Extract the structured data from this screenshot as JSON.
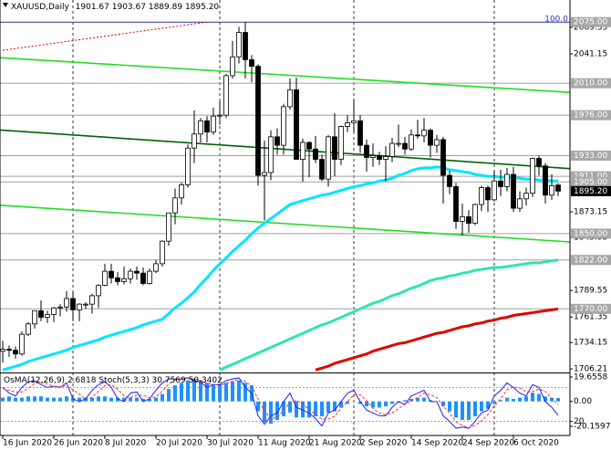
{
  "chart_data": {
    "type": "candlestick",
    "title": "XAUUSD,Daily",
    "header_values": [
      "1901.67",
      "1903.67",
      "1889.89",
      "1895.20"
    ],
    "categories": [
      "16 Jun 2020",
      null,
      null,
      null,
      null,
      null,
      null,
      null,
      "26 Jun 2020",
      null,
      null,
      null,
      null,
      null,
      null,
      null,
      "8 Jul 2020",
      null,
      null,
      null,
      null,
      null,
      null,
      null,
      "20 Jul 2020",
      null,
      null,
      null,
      null,
      null,
      null,
      null,
      "30 Jul 2020",
      null,
      null,
      null,
      null,
      null,
      null,
      null,
      "11 Aug 2020",
      null,
      null,
      null,
      null,
      null,
      null,
      null,
      "21 Aug 2020",
      null,
      null,
      null,
      null,
      null,
      null,
      null,
      "2 Sep 2020",
      null,
      null,
      null,
      null,
      null,
      null,
      null,
      "14 Sep 2020",
      null,
      null,
      null,
      null,
      null,
      null,
      null,
      "24 Sep 2020",
      null,
      null,
      null,
      null,
      null,
      null,
      null,
      "6 Oct 2020",
      null,
      null,
      null,
      null,
      null,
      null,
      null
    ],
    "open": [
      1725,
      1727,
      1726,
      1722,
      1743,
      1754,
      1768,
      1761,
      1764,
      1771,
      1772,
      1781,
      1769,
      1775,
      1775,
      1784,
      1795,
      1810,
      1803,
      1799,
      1802,
      1810,
      1808,
      1797,
      1810,
      1818,
      1842,
      1872,
      1888,
      1902,
      1941,
      1956,
      1970,
      1958,
      1975,
      1976,
      2018,
      2038,
      2064,
      2035,
      2028,
      1912,
      1915,
      1953,
      1944,
      1985,
      2003,
      1929,
      1947,
      1940,
      1929,
      1908,
      1953,
      1929,
      1964,
      1968,
      1970,
      1944,
      1931,
      1933,
      1929,
      1932,
      1946,
      1946,
      1940,
      1955,
      1954,
      1960,
      1944,
      1950,
      1912,
      1900,
      1863,
      1868,
      1861,
      1881,
      1899,
      1886,
      1906,
      1900,
      1913,
      1877,
      1887,
      1893,
      1930,
      1922,
      1891,
      1901.67
    ],
    "high": [
      1736,
      1731,
      1730,
      1746,
      1756,
      1768,
      1779,
      1768,
      1772,
      1775,
      1789,
      1788,
      1776,
      1777,
      1786,
      1796,
      1818,
      1818,
      1809,
      1815,
      1813,
      1815,
      1814,
      1813,
      1822,
      1843,
      1872,
      1898,
      1904,
      1945,
      1981,
      1973,
      1975,
      1984,
      1991,
      2020,
      2055,
      2070,
      2075,
      2040,
      2030,
      1949,
      1960,
      1962,
      1988,
      2015,
      2016,
      1951,
      1948,
      1954,
      1934,
      1955,
      1978,
      1965,
      1976,
      1992,
      1976,
      1950,
      1946,
      1937,
      1943,
      1952,
      1966,
      1953,
      1961,
      1971,
      1973,
      1962,
      1955,
      1953,
      1917,
      1904,
      1882,
      1875,
      1882,
      1901,
      1901,
      1917,
      1918,
      1920,
      1921,
      1895,
      1899,
      1931,
      1933,
      1925,
      1913,
      1903.67
    ],
    "low": [
      1713,
      1719,
      1717,
      1720,
      1741,
      1749,
      1757,
      1755,
      1756,
      1762,
      1767,
      1757,
      1757,
      1770,
      1765,
      1771,
      1794,
      1797,
      1795,
      1796,
      1797,
      1801,
      1795,
      1796,
      1808,
      1815,
      1837,
      1860,
      1881,
      1899,
      1925,
      1947,
      1947,
      1955,
      1966,
      1973,
      2015,
      2031,
      2015,
      2011,
      1901,
      1864,
      1907,
      1934,
      1934,
      1982,
      1930,
      1905,
      1910,
      1925,
      1906,
      1900,
      1911,
      1923,
      1958,
      1958,
      1936,
      1916,
      1921,
      1923,
      1906,
      1926,
      1942,
      1934,
      1938,
      1951,
      1947,
      1931,
      1936,
      1882,
      1892,
      1855,
      1848,
      1851,
      1859,
      1874,
      1873,
      1884,
      1890,
      1895,
      1873,
      1873,
      1880,
      1889,
      1912,
      1882,
      1886,
      1889.89
    ],
    "close": [
      1727,
      1726,
      1722,
      1743,
      1754,
      1768,
      1761,
      1764,
      1771,
      1772,
      1781,
      1769,
      1775,
      1775,
      1784,
      1795,
      1810,
      1803,
      1799,
      1802,
      1810,
      1808,
      1797,
      1810,
      1818,
      1842,
      1872,
      1888,
      1902,
      1941,
      1956,
      1970,
      1958,
      1975,
      1976,
      2018,
      2038,
      2064,
      2035,
      2028,
      1912,
      1915,
      1953,
      1944,
      1985,
      2003,
      1929,
      1947,
      1940,
      1929,
      1908,
      1953,
      1929,
      1964,
      1968,
      1970,
      1944,
      1931,
      1933,
      1929,
      1932,
      1946,
      1946,
      1940,
      1955,
      1954,
      1960,
      1944,
      1950,
      1912,
      1900,
      1863,
      1868,
      1861,
      1881,
      1899,
      1886,
      1906,
      1900,
      1913,
      1877,
      1887,
      1893,
      1930,
      1922,
      1891,
      1901,
      1895.2
    ],
    "bull_color": "#ffffff",
    "bear_color": "#000000",
    "ylim": [
      1703.3,
      2098.5
    ],
    "yticks": [
      2069.35,
      2041.15,
      1873.15,
      1845.95,
      1789.55,
      1761.35,
      1734.15,
      1706.21
    ],
    "series": [
      {
        "color": "#00e5ff",
        "values": [
          1705,
          1707,
          1709,
          1711,
          1714,
          1716,
          1718,
          1720,
          1722,
          1724,
          1726,
          1729,
          1731,
          1733,
          1735,
          1737,
          1740,
          1742,
          1744,
          1746,
          1748,
          1750,
          1753,
          1755,
          1757,
          1759,
          1765,
          1771,
          1776,
          1782,
          1788,
          1796,
          1803,
          1811,
          1818,
          1824,
          1831,
          1837,
          1843,
          1850,
          1856,
          1861,
          1866,
          1871,
          1876,
          1881,
          1883,
          1885,
          1887,
          1889,
          1891,
          1892,
          1894,
          1896,
          1898,
          1900,
          1901,
          1903,
          1904,
          1906,
          1907,
          1909,
          1912,
          1914,
          1917,
          1919,
          1920,
          1920,
          1921,
          1920,
          1918,
          1917,
          1916,
          1915,
          1913,
          1912,
          1911,
          1911,
          1910,
          1910,
          1909,
          1909,
          1908,
          1908,
          1907,
          1907,
          1906,
          1906
        ]
      },
      {
        "color": "#2ee6b0",
        "values": [
          null,
          null,
          null,
          null,
          null,
          null,
          null,
          null,
          null,
          null,
          null,
          null,
          null,
          null,
          null,
          null,
          null,
          null,
          null,
          null,
          null,
          null,
          null,
          null,
          null,
          null,
          null,
          null,
          null,
          null,
          null,
          null,
          null,
          null,
          1705,
          1708,
          1711,
          1714,
          1717,
          1720,
          1723,
          1726,
          1729,
          1732,
          1735,
          1738,
          1741,
          1744,
          1747,
          1750,
          1753,
          1755,
          1758,
          1761,
          1764,
          1767,
          1770,
          1773,
          1776,
          1778,
          1781,
          1784,
          1786,
          1789,
          1792,
          1794,
          1797,
          1800,
          1802,
          1803,
          1805,
          1806,
          1808,
          1809,
          1811,
          1812,
          1813,
          1814,
          1814,
          1815,
          1816,
          1817,
          1818,
          1819,
          1819,
          1820,
          1821,
          1822
        ]
      },
      {
        "color": "#e00000",
        "values": [
          null,
          null,
          null,
          null,
          null,
          null,
          null,
          null,
          null,
          null,
          null,
          null,
          null,
          null,
          null,
          null,
          null,
          null,
          null,
          null,
          null,
          null,
          null,
          null,
          null,
          null,
          null,
          null,
          null,
          null,
          null,
          null,
          null,
          null,
          null,
          null,
          null,
          null,
          null,
          null,
          null,
          null,
          null,
          null,
          null,
          null,
          null,
          null,
          null,
          1705,
          1707,
          1709,
          1712,
          1714,
          1716,
          1718,
          1720,
          1722,
          1725,
          1727,
          1729,
          1731,
          1733,
          1734,
          1736,
          1738,
          1740,
          1742,
          1744,
          1745,
          1747,
          1749,
          1751,
          1752,
          1754,
          1755,
          1757,
          1758,
          1760,
          1761,
          1763,
          1764,
          1765,
          1766,
          1767,
          1768,
          1769,
          1770
        ]
      }
    ],
    "trend_lines": [
      {
        "color": "#22dd22",
        "dash": false,
        "extend": true,
        "start": [
          0,
          2037
        ],
        "end": [
          87,
          2001
        ]
      },
      {
        "color": "#006400",
        "dash": false,
        "extend": true,
        "start": [
          0,
          1960
        ],
        "end": [
          87,
          1920
        ]
      },
      {
        "color": "#22dd22",
        "dash": false,
        "extend": true,
        "start": [
          0,
          1880
        ],
        "end": [
          87,
          1842
        ]
      },
      {
        "color": "#dd0000",
        "dash": true,
        "extend": false,
        "start": [
          0,
          2045
        ],
        "end": [
          32,
          2075
        ]
      }
    ],
    "levels": [
      {
        "value": 2075,
        "label": "2075.00",
        "color": "#3030a0"
      },
      {
        "value": 2010,
        "label": "2010.00",
        "color": "#a0a0a0"
      },
      {
        "value": 1976,
        "label": "1976.00",
        "color": "#a0a0a0"
      },
      {
        "value": 1933,
        "label": "1933.00",
        "color": "#a0a0a0"
      },
      {
        "value": 1911,
        "label": "1911.00",
        "color": "#a0a0a0"
      },
      {
        "value": 1905,
        "label": "1905.00",
        "color": "#a0a0a0"
      },
      {
        "value": 1850,
        "label": "1850.00",
        "color": "#a0a0a0"
      },
      {
        "value": 1822,
        "label": "1822.00",
        "color": "#a0a0a0"
      },
      {
        "value": 1770,
        "label": "1770.00",
        "color": "#a0a0a0"
      }
    ],
    "fib_label": "100.0",
    "last_price": {
      "value": 1895.2,
      "label": "1895.20"
    },
    "period_separators": [
      11,
      34,
      55,
      77
    ],
    "indicator": {
      "osma_name": "OsMA(12,26,9)",
      "osma_value": 2.6818,
      "stoch_name": "Stoch(5,3,3)",
      "stoch_main_value": 30.7569,
      "stoch_signal_value": 50.3402,
      "osma_color": "#1e90ff",
      "stoch_main_color": "#2020ff",
      "stoch_signal_color": "#ff3030",
      "ylim": [
        -20.1597,
        19.6558
      ],
      "yticks": [
        19.6558,
        {
          "value": 0,
          "label": "0.00"
        },
        -20.1597
      ],
      "stoch_lim": [
        0,
        100
      ],
      "stoch_levels": [
        80,
        20
      ],
      "stoch_ticks": [
        20
      ],
      "osma": [
        3,
        4,
        3,
        3,
        4,
        4,
        4,
        3,
        3,
        3,
        4,
        3,
        3,
        3,
        3,
        4,
        4,
        3,
        3,
        3,
        3,
        3,
        2,
        2,
        3,
        6,
        10,
        13,
        15,
        17,
        18,
        17,
        15,
        14,
        14,
        15,
        16,
        17,
        15,
        13,
        -8,
        -17,
        -18,
        -15,
        -12,
        -9,
        -13,
        -13,
        -13,
        -12,
        -12,
        -9,
        -8,
        -5,
        -2,
        0,
        -2,
        -4,
        -5,
        -5,
        -4,
        -2,
        -1,
        1,
        2,
        3,
        3,
        1,
        0,
        -4,
        -8,
        -13,
        -15,
        -15,
        -12,
        -8,
        -6,
        -2,
        1,
        3,
        2,
        3,
        4,
        7,
        6,
        4,
        3,
        2.6818
      ],
      "stoch_main": [
        80,
        70,
        65,
        80,
        90,
        92,
        85,
        80,
        82,
        80,
        88,
        60,
        55,
        60,
        75,
        85,
        90,
        80,
        60,
        55,
        70,
        72,
        55,
        60,
        75,
        88,
        95,
        95,
        95,
        97,
        92,
        90,
        80,
        85,
        85,
        92,
        95,
        97,
        80,
        70,
        30,
        15,
        30,
        35,
        55,
        70,
        45,
        40,
        35,
        25,
        12,
        35,
        40,
        55,
        70,
        75,
        55,
        40,
        35,
        30,
        30,
        45,
        55,
        50,
        65,
        70,
        75,
        55,
        55,
        30,
        20,
        8,
        10,
        8,
        20,
        35,
        40,
        65,
        75,
        88,
        80,
        70,
        65,
        85,
        80,
        55,
        45,
        30.7569
      ],
      "stoch_signal": [
        78,
        75,
        72,
        72,
        78,
        87,
        89,
        86,
        82,
        81,
        83,
        76,
        68,
        58,
        63,
        73,
        83,
        85,
        77,
        65,
        62,
        66,
        66,
        62,
        63,
        74,
        86,
        93,
        95,
        96,
        95,
        93,
        87,
        85,
        83,
        87,
        91,
        95,
        91,
        82,
        60,
        38,
        25,
        27,
        40,
        53,
        57,
        52,
        40,
        33,
        24,
        24,
        29,
        43,
        55,
        67,
        67,
        57,
        43,
        35,
        32,
        35,
        43,
        50,
        57,
        62,
        70,
        67,
        62,
        47,
        35,
        19,
        13,
        9,
        13,
        21,
        32,
        47,
        60,
        76,
        81,
        79,
        72,
        73,
        77,
        73,
        60,
        50.3402
      ]
    }
  }
}
